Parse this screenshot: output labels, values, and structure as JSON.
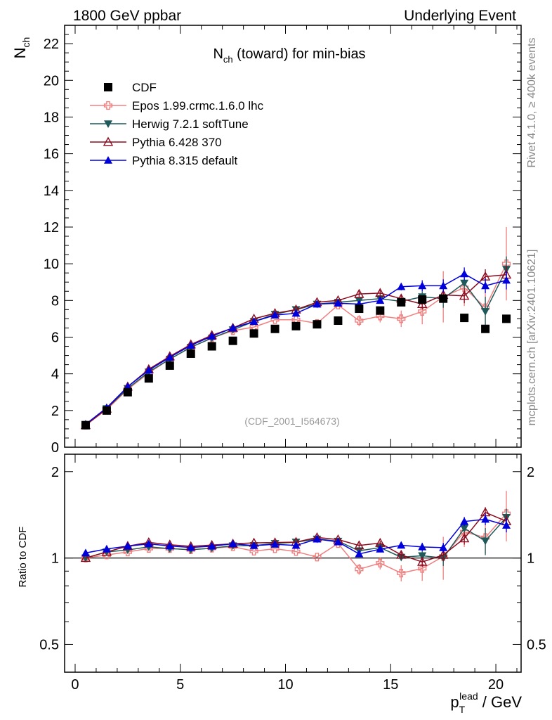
{
  "header": {
    "left": "1800 GeV ppbar",
    "right": "Underlying Event"
  },
  "side_labels": {
    "rivet": "Rivet 4.1.0, ≥ 400k events",
    "mcplots": "mcplots.cern.ch [arXiv:2401.10621]"
  },
  "chart_data": {
    "type": "scatter",
    "title": "N_ch (toward) for min-bias",
    "title_main": "N",
    "title_sub": "ch",
    "title_rest": " (toward) for min-bias",
    "ylabel_main": "N",
    "ylabel_sub": "ch",
    "ratio_ylabel": "Ratio to CDF",
    "xlabel_p": "p",
    "xlabel_sub": "T",
    "xlabel_sup": "lead",
    "xlabel_rest": " / GeV",
    "watermark": "(CDF_2001_I564673)",
    "xlim": [
      -0.5,
      21.2
    ],
    "ylim": [
      0,
      23
    ],
    "ratio_ylim": [
      0.4,
      2.3
    ],
    "x_ticks": [
      "0",
      "5",
      "10",
      "15",
      "20"
    ],
    "y_ticks": [
      "0",
      "2",
      "4",
      "6",
      "8",
      "10",
      "12",
      "14",
      "16",
      "18",
      "20",
      "22"
    ],
    "ratio_ticks": [
      "0.5",
      "1",
      "2"
    ],
    "x": [
      0.5,
      1.5,
      2.5,
      3.5,
      4.5,
      5.5,
      6.5,
      7.5,
      8.5,
      9.5,
      10.5,
      11.5,
      12.5,
      13.5,
      14.5,
      15.5,
      16.5,
      17.5,
      18.5,
      19.5,
      20.5
    ],
    "series": [
      {
        "name": "CDF",
        "marker": "square",
        "color": "#000000",
        "values": [
          1.2,
          2.0,
          3.0,
          3.75,
          4.45,
          5.1,
          5.5,
          5.8,
          6.2,
          6.45,
          6.6,
          6.7,
          6.9,
          7.55,
          7.45,
          7.9,
          8.05,
          8.1,
          7.05,
          6.45,
          7.0
        ]
      },
      {
        "name": "Epos 1.99.crmc.1.6.0 lhc",
        "marker": "cross",
        "color": "#f08080",
        "values": [
          1.2,
          2.05,
          3.15,
          4.05,
          4.8,
          5.45,
          5.95,
          6.35,
          6.55,
          6.95,
          6.95,
          6.75,
          7.75,
          6.9,
          7.15,
          7.0,
          7.4,
          8.2,
          8.7,
          7.6,
          10.0
        ],
        "errors": [
          0,
          0,
          0,
          0,
          0,
          0,
          0,
          0,
          0,
          0,
          0,
          0,
          0,
          0.3,
          0.35,
          0.45,
          0.7,
          1.4,
          1.0,
          0.9,
          2.0
        ]
      },
      {
        "name": "Herwig 7.2.1 softTune",
        "marker": "triangle-down",
        "color": "#1f5a5a",
        "values": [
          1.2,
          2.1,
          3.2,
          4.1,
          4.8,
          5.45,
          5.95,
          6.4,
          6.85,
          7.25,
          7.5,
          7.8,
          7.9,
          8.0,
          8.1,
          7.95,
          8.2,
          8.1,
          8.95,
          7.4,
          9.7
        ],
        "errors": [
          0,
          0,
          0,
          0,
          0,
          0,
          0,
          0,
          0,
          0,
          0,
          0,
          0,
          0.15,
          0.15,
          0.2,
          0.3,
          0.5,
          0.5,
          0.8,
          0.7
        ]
      },
      {
        "name": "Pythia 6.428 370",
        "marker": "triangle-up-open",
        "color": "#8b0a1e",
        "values": [
          1.2,
          2.1,
          3.3,
          4.25,
          4.95,
          5.6,
          6.1,
          6.5,
          7.0,
          7.3,
          7.5,
          7.9,
          8.0,
          8.35,
          8.4,
          8.1,
          7.8,
          8.3,
          8.25,
          9.3,
          9.4
        ],
        "errors": [
          0,
          0,
          0,
          0,
          0,
          0,
          0,
          0,
          0,
          0,
          0,
          0,
          0,
          0.15,
          0.15,
          0.2,
          0.3,
          0.4,
          0.4,
          0.4,
          0.5
        ]
      },
      {
        "name": "Pythia 8.315 default",
        "marker": "triangle-up",
        "color": "#0000dd",
        "values": [
          1.25,
          2.15,
          3.3,
          4.2,
          4.9,
          5.55,
          6.05,
          6.5,
          6.85,
          7.2,
          7.3,
          7.8,
          7.85,
          7.8,
          8.0,
          8.75,
          8.8,
          8.8,
          9.45,
          8.8,
          9.1
        ],
        "errors": [
          0,
          0,
          0,
          0,
          0,
          0,
          0,
          0,
          0,
          0,
          0,
          0,
          0,
          0.15,
          0.15,
          0.2,
          0.3,
          0.35,
          0.35,
          0.4,
          0.5
        ]
      }
    ]
  }
}
